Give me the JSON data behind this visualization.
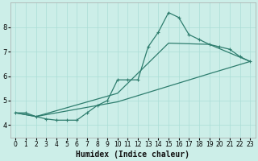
{
  "xlabel": "Humidex (Indice chaleur)",
  "bg_color": "#cceee8",
  "line_color": "#2e7d6e",
  "xlim": [
    -0.5,
    23.5
  ],
  "ylim": [
    3.5,
    9.0
  ],
  "xticks": [
    0,
    1,
    2,
    3,
    4,
    5,
    6,
    7,
    8,
    9,
    10,
    11,
    12,
    13,
    14,
    15,
    16,
    17,
    18,
    19,
    20,
    21,
    22,
    23
  ],
  "yticks": [
    4,
    5,
    6,
    7,
    8
  ],
  "line1_x": [
    0,
    1,
    2,
    3,
    4,
    5,
    6,
    7,
    8,
    9,
    10,
    11,
    12,
    13,
    14,
    15,
    16,
    17,
    18,
    19,
    20,
    21,
    22,
    23
  ],
  "line1_y": [
    4.5,
    4.5,
    4.35,
    4.25,
    4.2,
    4.2,
    4.2,
    4.5,
    4.8,
    5.0,
    5.85,
    5.85,
    5.85,
    7.2,
    7.8,
    8.6,
    8.4,
    7.7,
    7.5,
    7.3,
    7.2,
    7.1,
    6.8,
    6.6
  ],
  "line2_x": [
    0,
    2,
    10,
    15,
    19,
    23
  ],
  "line2_y": [
    4.5,
    4.35,
    5.3,
    7.35,
    7.3,
    6.6
  ],
  "line3_x": [
    0,
    2,
    10,
    19,
    23
  ],
  "line3_y": [
    4.5,
    4.35,
    4.95,
    6.1,
    6.6
  ],
  "grid_color": "#aaddd6",
  "title_fontsize": 7.5,
  "xlabel_fontsize": 7,
  "tick_fontsize": 5.5
}
